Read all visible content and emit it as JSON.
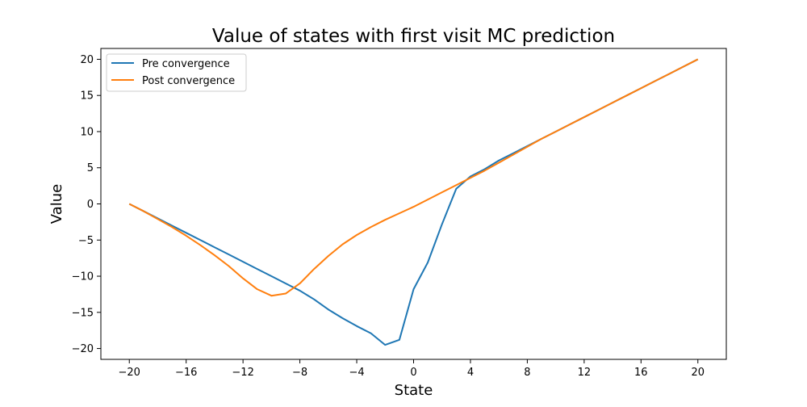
{
  "chart_data": {
    "type": "line",
    "title": "Value of states with first visit MC prediction",
    "xlabel": "State",
    "ylabel": "Value",
    "xlim": [
      -22,
      22
    ],
    "ylim": [
      -21.5,
      21.5
    ],
    "xticks": [
      -20,
      -16,
      -12,
      -8,
      -4,
      0,
      4,
      8,
      12,
      16,
      20
    ],
    "yticks": [
      20,
      15,
      10,
      5,
      0,
      -5,
      -10,
      -15,
      -20
    ],
    "xtick_labels": [
      "−20",
      "−16",
      "−12",
      "−8",
      "−4",
      "0",
      "4",
      "8",
      "12",
      "16",
      "20"
    ],
    "ytick_labels": [
      "20",
      "15",
      "10",
      "5",
      "0",
      "−5",
      "−10",
      "−15",
      "−20"
    ],
    "grid": false,
    "legend_position": "top-left",
    "x": [
      -20,
      -19,
      -18,
      -17,
      -16,
      -15,
      -14,
      -13,
      -12,
      -11,
      -10,
      -9,
      -8,
      -7,
      -6,
      -5,
      -4,
      -3,
      -2,
      -1,
      0,
      1,
      2,
      3,
      4,
      5,
      6,
      7,
      8,
      9,
      10,
      11,
      12,
      13,
      14,
      15,
      16,
      17,
      18,
      19,
      20
    ],
    "series": [
      {
        "name": "Pre convergence",
        "color": "#1f77b4",
        "values": [
          0,
          -1,
          -2,
          -3,
          -4,
          -5,
          -6,
          -7,
          -8,
          -9,
          -10,
          -11,
          -12,
          -13.2,
          -14.6,
          -15.8,
          -16.9,
          -17.9,
          -19.5,
          -18.8,
          -11.8,
          -8.1,
          -2.8,
          2.1,
          3.8,
          4.8,
          6.0,
          7.0,
          8.0,
          9.0,
          10.0,
          11.0,
          12.0,
          13.0,
          14.0,
          15.0,
          16.0,
          17.0,
          18.0,
          19.0,
          20.0
        ]
      },
      {
        "name": "Post convergence",
        "color": "#ff7f0e",
        "values": [
          0,
          -1.0,
          -2.1,
          -3.2,
          -4.4,
          -5.7,
          -7.1,
          -8.6,
          -10.3,
          -11.8,
          -12.7,
          -12.4,
          -11.0,
          -9.0,
          -7.2,
          -5.6,
          -4.3,
          -3.2,
          -2.2,
          -1.3,
          -0.4,
          0.6,
          1.6,
          2.6,
          3.6,
          4.6,
          5.7,
          6.8,
          7.9,
          9.0,
          10.0,
          11.0,
          12.0,
          13.0,
          14.0,
          15.0,
          16.0,
          17.0,
          18.0,
          19.0,
          20.0
        ]
      }
    ]
  }
}
